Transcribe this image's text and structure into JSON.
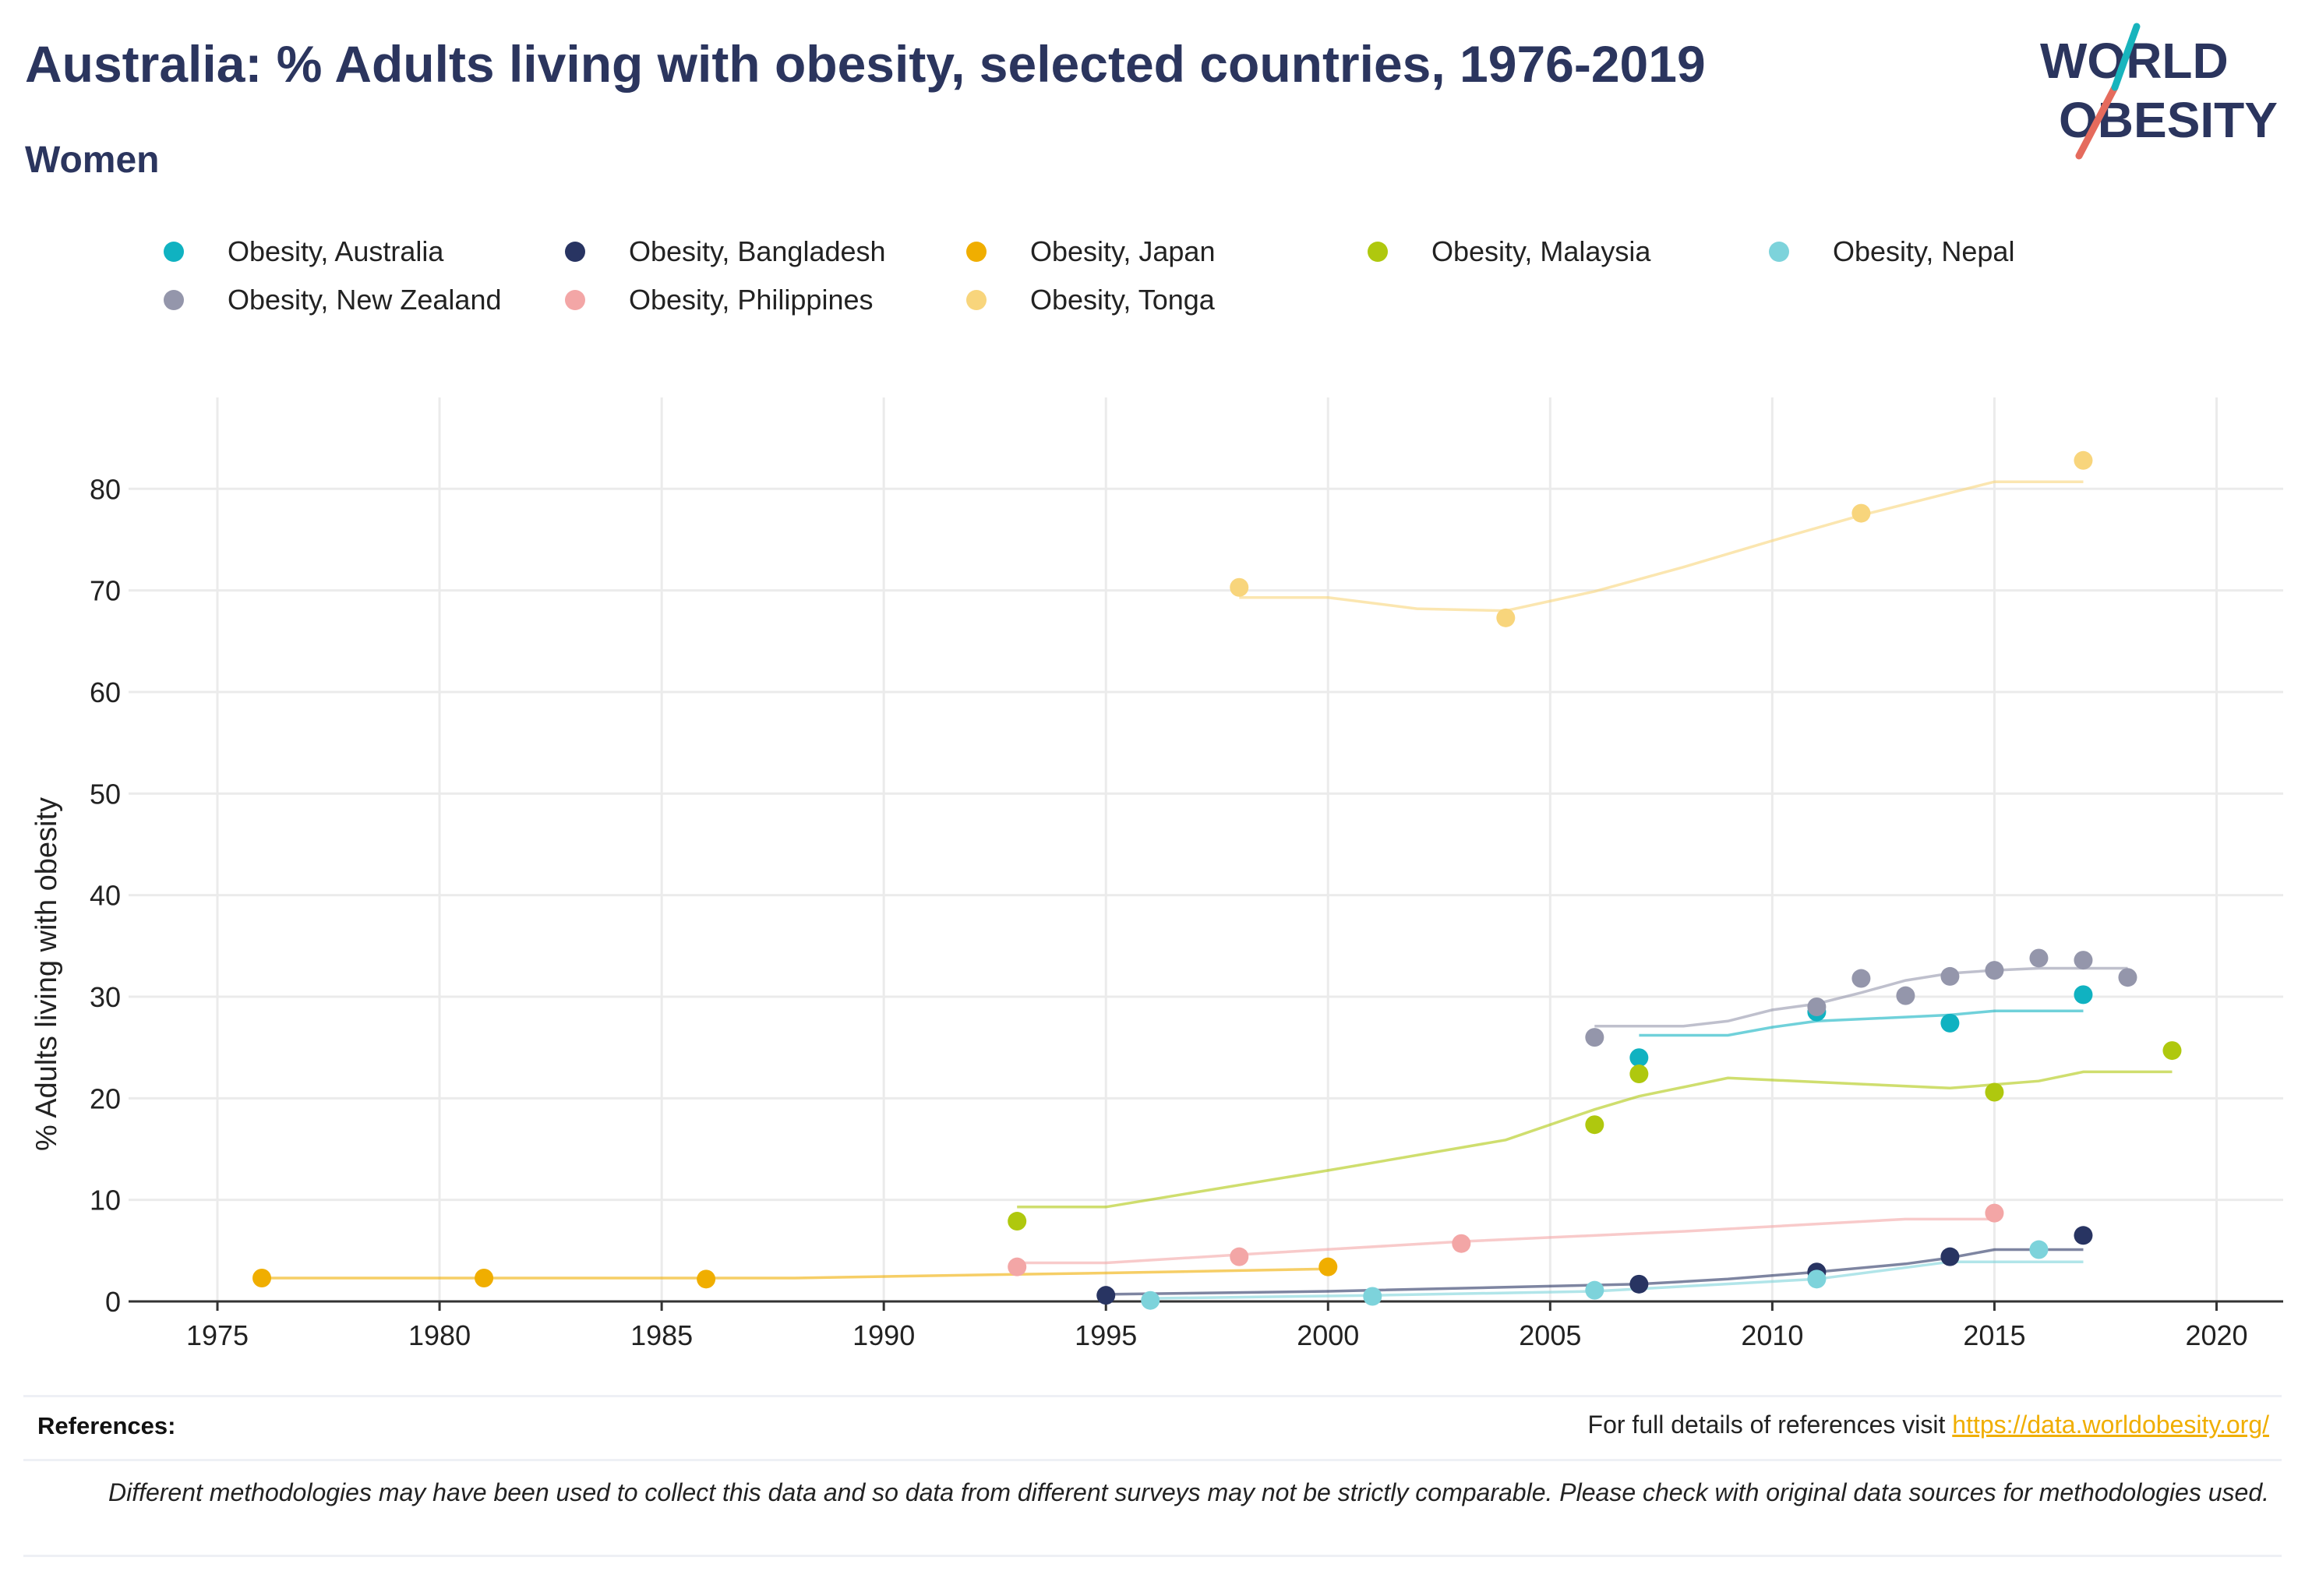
{
  "header": {
    "title": "Australia: % Adults living with obesity, selected countries, 1976-2019",
    "subtitle": "Women"
  },
  "logo": {
    "line1": "WORLD",
    "line2": "OBESITY"
  },
  "footer": {
    "references_label": "References:",
    "references_text": "For full details of references visit ",
    "references_link": "https://data.worldobesity.org/",
    "disclaimer": "Different methodologies may have been used to collect this data and so data from different surveys may not be strictly comparable. Please check with original data sources for methodologies used."
  },
  "colors": {
    "title": "#2b355e",
    "link": "#f0ae00",
    "grid": "#ebebeb"
  },
  "chart_data": {
    "type": "scatter",
    "title": "Australia: % Adults living with obesity, selected countries, 1976-2019",
    "subtitle": "Women",
    "xlabel": "",
    "ylabel": "% Adults living with obesity",
    "xlim": [
      1973,
      2021.5
    ],
    "ylim": [
      0,
      89
    ],
    "xticks": [
      1975,
      1980,
      1985,
      1990,
      1995,
      2000,
      2005,
      2010,
      2015,
      2020
    ],
    "yticks": [
      0,
      10,
      20,
      30,
      40,
      50,
      60,
      70,
      80
    ],
    "grid": true,
    "legend_position": "top",
    "series": [
      {
        "name": "Obesity, Australia",
        "color": "#10b2c1",
        "points": [
          [
            2007,
            24.0
          ],
          [
            2011,
            28.5
          ],
          [
            2014,
            27.4
          ],
          [
            2017,
            30.2
          ]
        ],
        "trend": [
          [
            2007,
            26.2
          ],
          [
            2009,
            26.2
          ],
          [
            2010,
            27.0
          ],
          [
            2011,
            27.6
          ],
          [
            2013,
            28.0
          ],
          [
            2014,
            28.2
          ],
          [
            2015,
            28.6
          ],
          [
            2017,
            28.6
          ]
        ]
      },
      {
        "name": "Obesity, Bangladesh",
        "color": "#283462",
        "points": [
          [
            1995,
            0.6
          ],
          [
            2007,
            1.7
          ],
          [
            2011,
            2.9
          ],
          [
            2014,
            4.4
          ],
          [
            2017,
            6.5
          ]
        ],
        "trend": [
          [
            1995,
            0.7
          ],
          [
            2000,
            1.0
          ],
          [
            2005,
            1.5
          ],
          [
            2007,
            1.7
          ],
          [
            2009,
            2.2
          ],
          [
            2011,
            2.9
          ],
          [
            2013,
            3.7
          ],
          [
            2014,
            4.3
          ],
          [
            2015,
            5.1
          ],
          [
            2017,
            5.1
          ]
        ]
      },
      {
        "name": "Obesity, Japan",
        "color": "#f0ae00",
        "points": [
          [
            1976,
            2.3
          ],
          [
            1981,
            2.3
          ],
          [
            1986,
            2.2
          ],
          [
            2000,
            3.4
          ]
        ],
        "trend": [
          [
            1976,
            2.3
          ],
          [
            1981,
            2.3
          ],
          [
            1988,
            2.3
          ],
          [
            1992,
            2.6
          ],
          [
            1995,
            2.8
          ],
          [
            2000,
            3.2
          ]
        ]
      },
      {
        "name": "Obesity, Malaysia",
        "color": "#afc80e",
        "points": [
          [
            1993,
            7.9
          ],
          [
            2006,
            17.4
          ],
          [
            2007,
            22.4
          ],
          [
            2015,
            20.6
          ],
          [
            2019,
            24.7
          ]
        ],
        "trend": [
          [
            1993,
            9.3
          ],
          [
            1995,
            9.3
          ],
          [
            2000,
            12.9
          ],
          [
            2004,
            15.9
          ],
          [
            2006,
            18.9
          ],
          [
            2007,
            20.2
          ],
          [
            2009,
            22.0
          ],
          [
            2012,
            21.4
          ],
          [
            2014,
            21.0
          ],
          [
            2016,
            21.7
          ],
          [
            2017,
            22.6
          ],
          [
            2019,
            22.6
          ]
        ]
      },
      {
        "name": "Obesity, Nepal",
        "color": "#7dd3db",
        "points": [
          [
            1996,
            0.1
          ],
          [
            2001,
            0.5
          ],
          [
            2006,
            1.1
          ],
          [
            2011,
            2.2
          ],
          [
            2016,
            5.1
          ]
        ],
        "trend": [
          [
            1996,
            0.3
          ],
          [
            2001,
            0.6
          ],
          [
            2006,
            1.0
          ],
          [
            2011,
            2.2
          ],
          [
            2014,
            3.9
          ],
          [
            2017,
            3.9
          ]
        ]
      },
      {
        "name": "Obesity, New Zealand",
        "color": "#9496ab",
        "points": [
          [
            2006,
            26.0
          ],
          [
            2011,
            29.0
          ],
          [
            2012,
            31.8
          ],
          [
            2013,
            30.1
          ],
          [
            2014,
            32.0
          ],
          [
            2015,
            32.6
          ],
          [
            2016,
            33.8
          ],
          [
            2017,
            33.6
          ],
          [
            2018,
            31.9
          ]
        ],
        "trend": [
          [
            2006,
            27.1
          ],
          [
            2008,
            27.1
          ],
          [
            2009,
            27.6
          ],
          [
            2010,
            28.7
          ],
          [
            2011,
            29.3
          ],
          [
            2012,
            30.4
          ],
          [
            2013,
            31.6
          ],
          [
            2014,
            32.3
          ],
          [
            2015,
            32.6
          ],
          [
            2016,
            32.8
          ],
          [
            2018,
            32.8
          ]
        ]
      },
      {
        "name": "Obesity, Philippines",
        "color": "#f3a6a6",
        "points": [
          [
            1993,
            3.4
          ],
          [
            1998,
            4.4
          ],
          [
            2003,
            5.7
          ],
          [
            2015,
            8.7
          ]
        ],
        "trend": [
          [
            1993,
            3.8
          ],
          [
            1995,
            3.8
          ],
          [
            1998,
            4.6
          ],
          [
            2003,
            5.9
          ],
          [
            2008,
            6.9
          ],
          [
            2013,
            8.1
          ],
          [
            2015,
            8.1
          ]
        ]
      },
      {
        "name": "Obesity, Tonga",
        "color": "#f8d57c",
        "points": [
          [
            1998,
            70.3
          ],
          [
            2004,
            67.3
          ],
          [
            2012,
            77.6
          ],
          [
            2017,
            82.8
          ]
        ],
        "trend": [
          [
            1998,
            69.3
          ],
          [
            2000,
            69.3
          ],
          [
            2002,
            68.2
          ],
          [
            2004,
            68.0
          ],
          [
            2006,
            69.9
          ],
          [
            2008,
            72.3
          ],
          [
            2010,
            74.9
          ],
          [
            2012,
            77.4
          ],
          [
            2015,
            80.7
          ],
          [
            2017,
            80.7
          ]
        ]
      }
    ]
  }
}
